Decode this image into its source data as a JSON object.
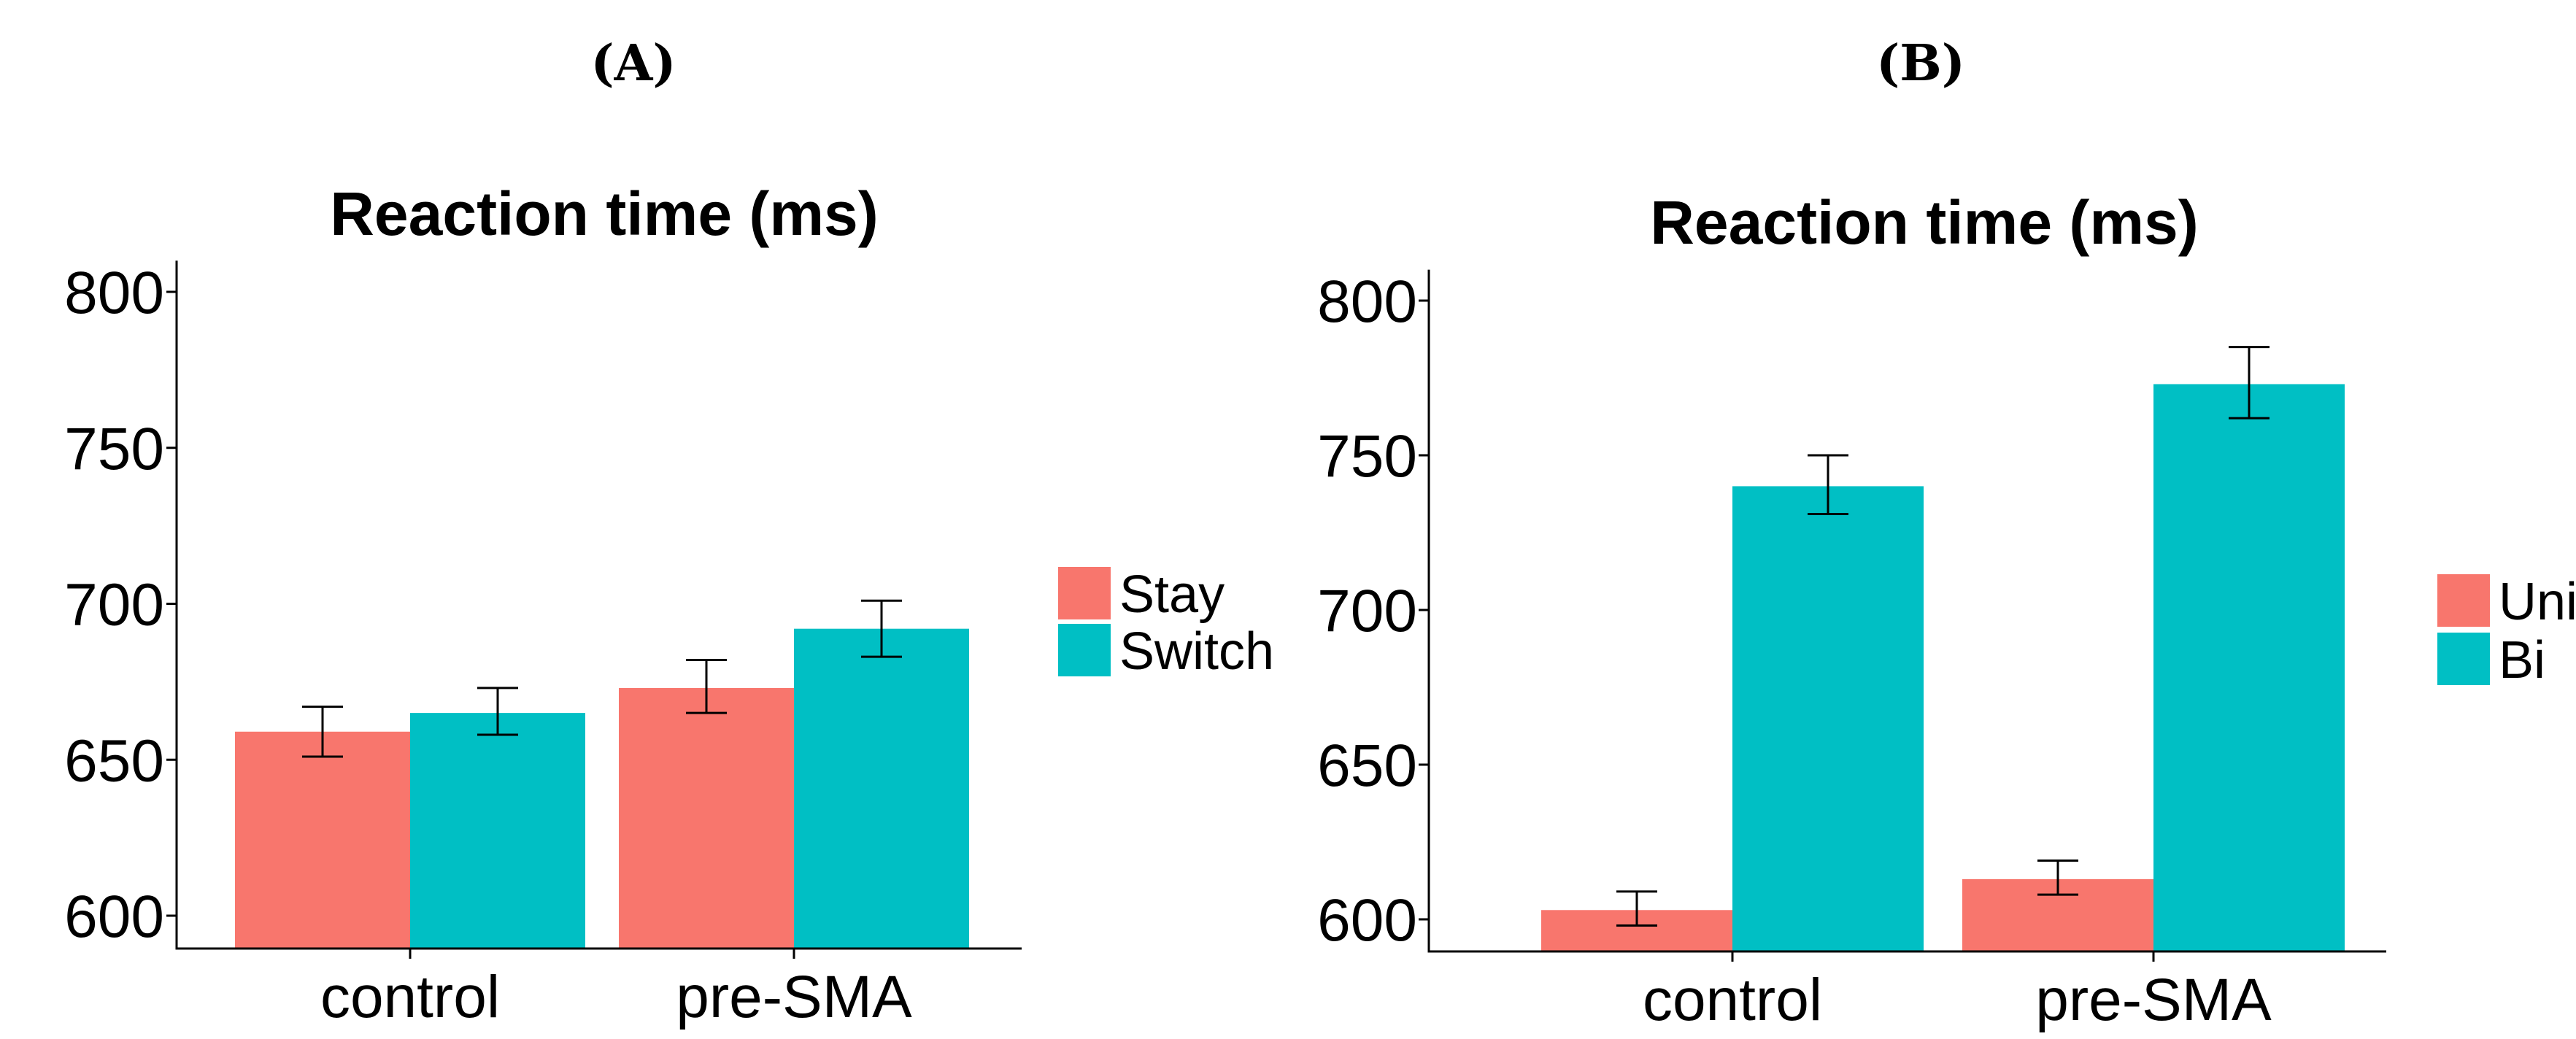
{
  "chart_data": [
    {
      "panel": "(A)",
      "type": "bar",
      "title": "Reaction time (ms)",
      "xlabel": "",
      "ylabel": "",
      "ylim": [
        590,
        810
      ],
      "yticks": [
        600,
        650,
        700,
        750,
        800
      ],
      "categories": [
        "control",
        "pre-SMA"
      ],
      "series": [
        {
          "name": "Stay",
          "color": "#F8766D",
          "values": [
            659,
            673
          ],
          "err_low": [
            651,
            665
          ],
          "err_high": [
            667,
            682
          ]
        },
        {
          "name": "Switch",
          "color": "#00BFC4",
          "values": [
            665,
            692
          ],
          "err_low": [
            658,
            683
          ],
          "err_high": [
            673,
            701
          ]
        }
      ],
      "legend": "right"
    },
    {
      "panel": "(B)",
      "type": "bar",
      "title": "Reaction time (ms)",
      "xlabel": "",
      "ylabel": "",
      "ylim": [
        590,
        810
      ],
      "yticks": [
        600,
        650,
        700,
        750,
        800
      ],
      "categories": [
        "control",
        "pre-SMA"
      ],
      "series": [
        {
          "name": "Uni",
          "color": "#F8766D",
          "values": [
            603,
            613
          ],
          "err_low": [
            598,
            608
          ],
          "err_high": [
            609,
            619
          ]
        },
        {
          "name": "Bi",
          "color": "#00BFC4",
          "values": [
            740,
            773
          ],
          "err_low": [
            731,
            762
          ],
          "err_high": [
            750,
            785
          ]
        }
      ],
      "legend": "right"
    }
  ]
}
